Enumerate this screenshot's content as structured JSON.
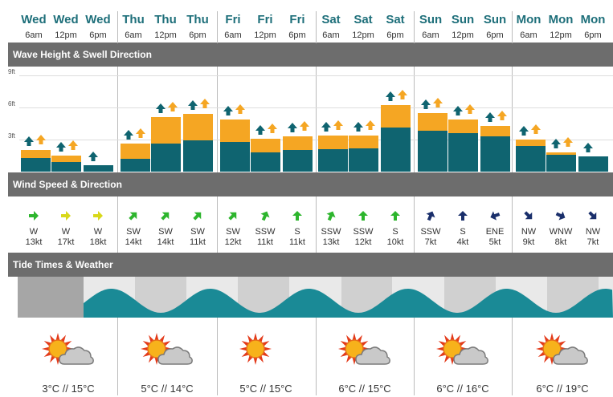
{
  "columns": [
    {
      "day": "Wed",
      "time": "6am"
    },
    {
      "day": "Wed",
      "time": "12pm"
    },
    {
      "day": "Wed",
      "time": "6pm"
    },
    {
      "day": "Thu",
      "time": "6am"
    },
    {
      "day": "Thu",
      "time": "12pm"
    },
    {
      "day": "Thu",
      "time": "6pm"
    },
    {
      "day": "Fri",
      "time": "6am"
    },
    {
      "day": "Fri",
      "time": "12pm"
    },
    {
      "day": "Fri",
      "time": "6pm"
    },
    {
      "day": "Sat",
      "time": "6am"
    },
    {
      "day": "Sat",
      "time": "12pm"
    },
    {
      "day": "Sat",
      "time": "6pm"
    },
    {
      "day": "Sun",
      "time": "6am"
    },
    {
      "day": "Sun",
      "time": "12pm"
    },
    {
      "day": "Sun",
      "time": "6pm"
    },
    {
      "day": "Mon",
      "time": "6am"
    },
    {
      "day": "Mon",
      "time": "12pm"
    },
    {
      "day": "Mon",
      "time": "6pm"
    }
  ],
  "sections": {
    "wave": "Wave Height & Swell Direction",
    "wind": "Wind Speed & Direction",
    "tide": "Tide Times & Weather"
  },
  "wave_axis": {
    "labels": [
      "9ft",
      "6ft",
      "3ft"
    ],
    "values": [
      9,
      6,
      3
    ],
    "max": 9
  },
  "chart_data": {
    "type": "bar",
    "title": "Wave Height & Swell Direction",
    "categories": [
      "Wed 6am",
      "Wed 12pm",
      "Wed 6pm",
      "Thu 6am",
      "Thu 12pm",
      "Thu 6pm",
      "Fri 6am",
      "Fri 12pm",
      "Fri 6pm",
      "Sat 6am",
      "Sat 12pm",
      "Sat 6pm",
      "Sun 6am",
      "Sun 12pm",
      "Sun 6pm",
      "Mon 6am",
      "Mon 12pm",
      "Mon 6pm"
    ],
    "series": [
      {
        "values": [
          1.3,
          0.9,
          0.6,
          1.2,
          2.6,
          2.9,
          2.8,
          1.8,
          2.0,
          2.1,
          2.2,
          4.1,
          3.8,
          3.6,
          3.3,
          2.4,
          1.6,
          1.4
        ]
      },
      {
        "values": [
          2.0,
          1.5,
          0.6,
          2.6,
          5.1,
          5.4,
          4.9,
          3.1,
          3.3,
          3.4,
          3.4,
          6.2,
          5.5,
          4.9,
          4.3,
          3.0,
          1.8,
          1.4
        ]
      }
    ],
    "ylim": [
      0,
      9
    ],
    "yticks": [
      "3ft",
      "6ft",
      "9ft"
    ],
    "grid": true
  },
  "wave_arrows": [
    {
      "dark": 1,
      "orange": 1
    },
    {
      "dark": 1,
      "orange": 1
    },
    {
      "dark": 1,
      "orange": 0
    },
    {
      "dark": 1,
      "orange": 1
    },
    {
      "dark": 1,
      "orange": 1
    },
    {
      "dark": 1,
      "orange": 1
    },
    {
      "dark": 1,
      "orange": 1
    },
    {
      "dark": 1,
      "orange": 1
    },
    {
      "dark": 1,
      "orange": 1
    },
    {
      "dark": 1,
      "orange": 1
    },
    {
      "dark": 1,
      "orange": 1
    },
    {
      "dark": 1,
      "orange": 1
    },
    {
      "dark": 1,
      "orange": 1
    },
    {
      "dark": 1,
      "orange": 1
    },
    {
      "dark": 1,
      "orange": 1
    },
    {
      "dark": 1,
      "orange": 1
    },
    {
      "dark": 1,
      "orange": 1
    },
    {
      "dark": 1,
      "orange": 0
    }
  ],
  "wind": [
    {
      "dir": "W",
      "speed": "13kt",
      "color": "#2db52d",
      "rot": 0
    },
    {
      "dir": "W",
      "speed": "17kt",
      "color": "#d8d81a",
      "rot": 0
    },
    {
      "dir": "W",
      "speed": "18kt",
      "color": "#d8d81a",
      "rot": 0
    },
    {
      "dir": "SW",
      "speed": "14kt",
      "color": "#2db52d",
      "rot": -45
    },
    {
      "dir": "SW",
      "speed": "14kt",
      "color": "#2db52d",
      "rot": -45
    },
    {
      "dir": "SW",
      "speed": "11kt",
      "color": "#2db52d",
      "rot": -45
    },
    {
      "dir": "SW",
      "speed": "12kt",
      "color": "#2db52d",
      "rot": -45
    },
    {
      "dir": "SSW",
      "speed": "11kt",
      "color": "#2db52d",
      "rot": -67
    },
    {
      "dir": "S",
      "speed": "11kt",
      "color": "#2db52d",
      "rot": -90
    },
    {
      "dir": "SSW",
      "speed": "13kt",
      "color": "#2db52d",
      "rot": -67
    },
    {
      "dir": "SSW",
      "speed": "12kt",
      "color": "#2db52d",
      "rot": -90
    },
    {
      "dir": "S",
      "speed": "10kt",
      "color": "#2db52d",
      "rot": -90
    },
    {
      "dir": "SSW",
      "speed": "7kt",
      "color": "#1a2f6b",
      "rot": -67
    },
    {
      "dir": "S",
      "speed": "4kt",
      "color": "#1a2f6b",
      "rot": -90
    },
    {
      "dir": "ENE",
      "speed": "5kt",
      "color": "#1a2f6b",
      "rot": 160
    },
    {
      "dir": "NW",
      "speed": "9kt",
      "color": "#1a2f6b",
      "rot": 45
    },
    {
      "dir": "WNW",
      "speed": "8kt",
      "color": "#1a2f6b",
      "rot": 25
    },
    {
      "dir": "NW",
      "speed": "7kt",
      "color": "#1a2f6b",
      "rot": 45
    }
  ],
  "weather": [
    {
      "icon": "sun-cloud-icon",
      "temp": "3°C // 15°C"
    },
    {
      "icon": "sun-cloud-icon",
      "temp": "5°C // 14°C"
    },
    {
      "icon": "sun-icon",
      "temp": "5°C // 15°C"
    },
    {
      "icon": "sun-cloud-icon",
      "temp": "6°C // 15°C"
    },
    {
      "icon": "sun-cloud-icon",
      "temp": "6°C // 16°C"
    },
    {
      "icon": "sun-cloud-icon",
      "temp": "6°C // 19°C"
    }
  ],
  "colors": {
    "swell": "#f5a623",
    "wave": "#0f6470",
    "tide": "#1a8a96",
    "header_bar": "#6d6d6d",
    "day": "#1e6f7a"
  }
}
